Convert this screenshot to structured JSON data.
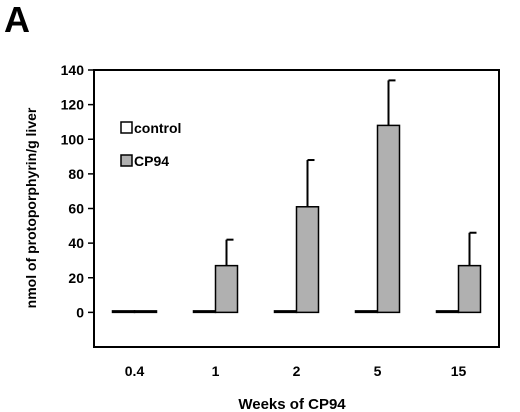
{
  "panel_label": "A",
  "chart_data": {
    "type": "bar",
    "categories": [
      "0.4",
      "1",
      "2",
      "5",
      "15"
    ],
    "series": [
      {
        "name": "control",
        "values": [
          0.5,
          0.5,
          0.5,
          0.3,
          0.5
        ],
        "errors": [
          0,
          0,
          0,
          0,
          0
        ],
        "color": "#ffffff"
      },
      {
        "name": "CP94",
        "values": [
          0.5,
          27,
          61,
          108,
          27
        ],
        "errors": [
          0,
          15,
          27,
          26,
          19
        ],
        "color": "#b0b0b0"
      }
    ],
    "xlabel": "Weeks of CP94",
    "ylabel": "nmol of protoporphyrin/g liver",
    "ylim": [
      -20,
      140
    ],
    "yticks": [
      0,
      20,
      40,
      60,
      80,
      100,
      120,
      140
    ],
    "grid": false,
    "legend_position": "top-left"
  }
}
